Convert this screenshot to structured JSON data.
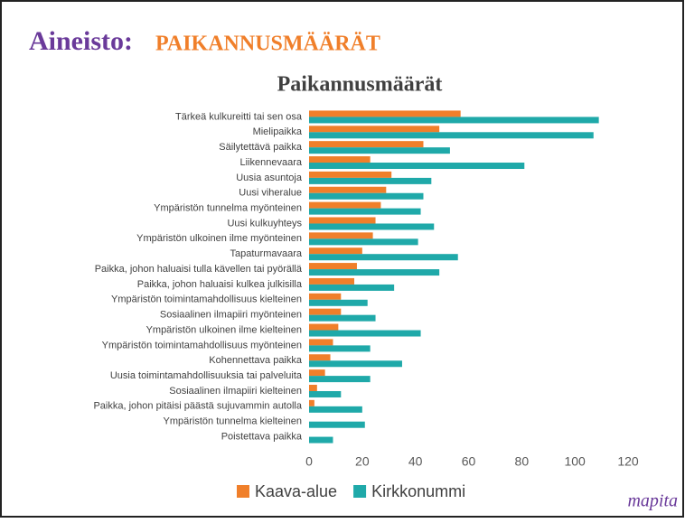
{
  "heading": {
    "prefix": "Aineisto:",
    "main": "PAIKANNUSMÄÄRÄT"
  },
  "logo": "mapita",
  "chart_data": {
    "type": "hbar",
    "title": "Paikannusmäärät",
    "categories": [
      "Tärkeä kulkureitti tai sen osa",
      "Mielipaikka",
      "Säilytettävä paikka",
      "Liikennevaara",
      "Uusia asuntoja",
      "Uusi viheralue",
      "Ympäristön tunnelma myönteinen",
      "Uusi kulkuyhteys",
      "Ympäristön ulkoinen ilme myönteinen",
      "Tapaturmavaara",
      "Paikka, johon haluaisi tulla kävellen tai pyörällä",
      "Paikka, johon haluaisi kulkea julkisilla",
      "Ympäristön toimintamahdollisuus kielteinen",
      "Sosiaalinen ilmapiiri myönteinen",
      "Ympäristön ulkoinen ilme kielteinen",
      "Ympäristön toimintamahdollisuus myönteinen",
      "Kohennettava paikka",
      "Uusia toimintamahdollisuuksia tai palveluita",
      "Sosiaalinen ilmapiiri kielteinen",
      "Paikka, johon pitäisi päästä sujuvammin autolla",
      "Ympäristön tunnelma kielteinen",
      "Poistettava paikka"
    ],
    "series": [
      {
        "name": "Kaava-alue",
        "color": "#f07f2a",
        "values": [
          57,
          49,
          43,
          23,
          31,
          29,
          27,
          25,
          24,
          20,
          18,
          17,
          12,
          12,
          11,
          9,
          8,
          6,
          3,
          2,
          0,
          0
        ]
      },
      {
        "name": "Kirkkonummi",
        "color": "#1fa9a9",
        "values": [
          109,
          107,
          53,
          81,
          46,
          43,
          42,
          47,
          41,
          56,
          49,
          32,
          22,
          25,
          42,
          23,
          35,
          23,
          12,
          20,
          21,
          9
        ]
      }
    ],
    "xlim": [
      0,
      120
    ],
    "xticks": [
      0,
      20,
      40,
      60,
      80,
      100,
      120
    ],
    "grid": false,
    "legend": "bottom"
  }
}
